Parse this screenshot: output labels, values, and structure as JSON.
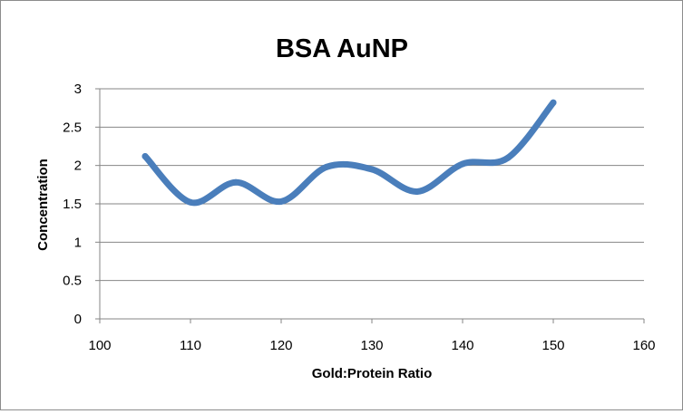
{
  "chart_data": {
    "type": "line",
    "title": "BSA AuNP",
    "xlabel": "Gold:Protein Ratio",
    "ylabel": "Concentration",
    "xlim": [
      100,
      160
    ],
    "ylim": [
      0,
      3
    ],
    "xticks": [
      "100",
      "110",
      "120",
      "130",
      "140",
      "150",
      "160"
    ],
    "yticks": [
      "0",
      "0.5",
      "1",
      "1.5",
      "2",
      "2.5",
      "3"
    ],
    "grid": "horizontal",
    "legend": "none",
    "smooth": true,
    "series": [
      {
        "color": "#4a7ebb",
        "x": [
          105,
          110,
          115,
          120,
          125,
          130,
          135,
          140,
          145,
          150
        ],
        "y": [
          2.12,
          1.52,
          1.78,
          1.53,
          1.98,
          1.95,
          1.66,
          2.02,
          2.1,
          2.82
        ]
      }
    ]
  }
}
